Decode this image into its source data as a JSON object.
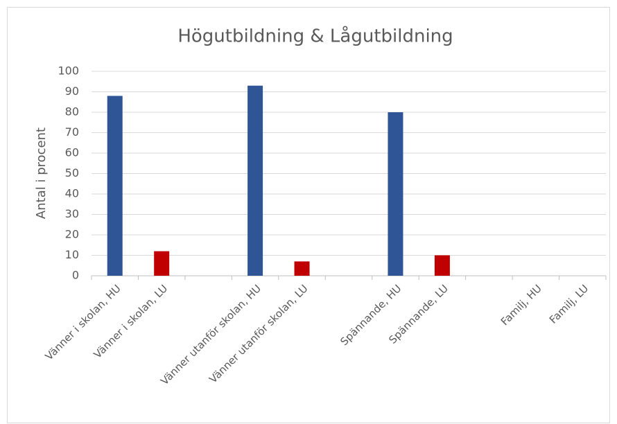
{
  "chart_data": {
    "type": "bar",
    "title": "Högutbildning & Lågutbildning",
    "y_label": "Antal i procent",
    "categories": [
      "Vänner i skolan,  HU",
      "Vänner i skolan, LU",
      null,
      "Vänner utanför skolan, HU",
      "Vänner utanför skolan, LU",
      null,
      "Spännande, HU",
      "Spännande, LU",
      null,
      "Familj, HU",
      "Familj, LU"
    ],
    "values": [
      88,
      12,
      null,
      93,
      7,
      null,
      80,
      10,
      null,
      0,
      0
    ],
    "colors": [
      "#2f5597",
      "#c00000",
      null,
      "#2f5597",
      "#c00000",
      null,
      "#2f5597",
      "#c00000",
      null,
      "#2f5597",
      "#c00000"
    ],
    "ylim": [
      0,
      100
    ],
    "yticks": [
      0,
      10,
      20,
      30,
      40,
      50,
      60,
      70,
      80,
      90,
      100
    ],
    "grid": true
  }
}
